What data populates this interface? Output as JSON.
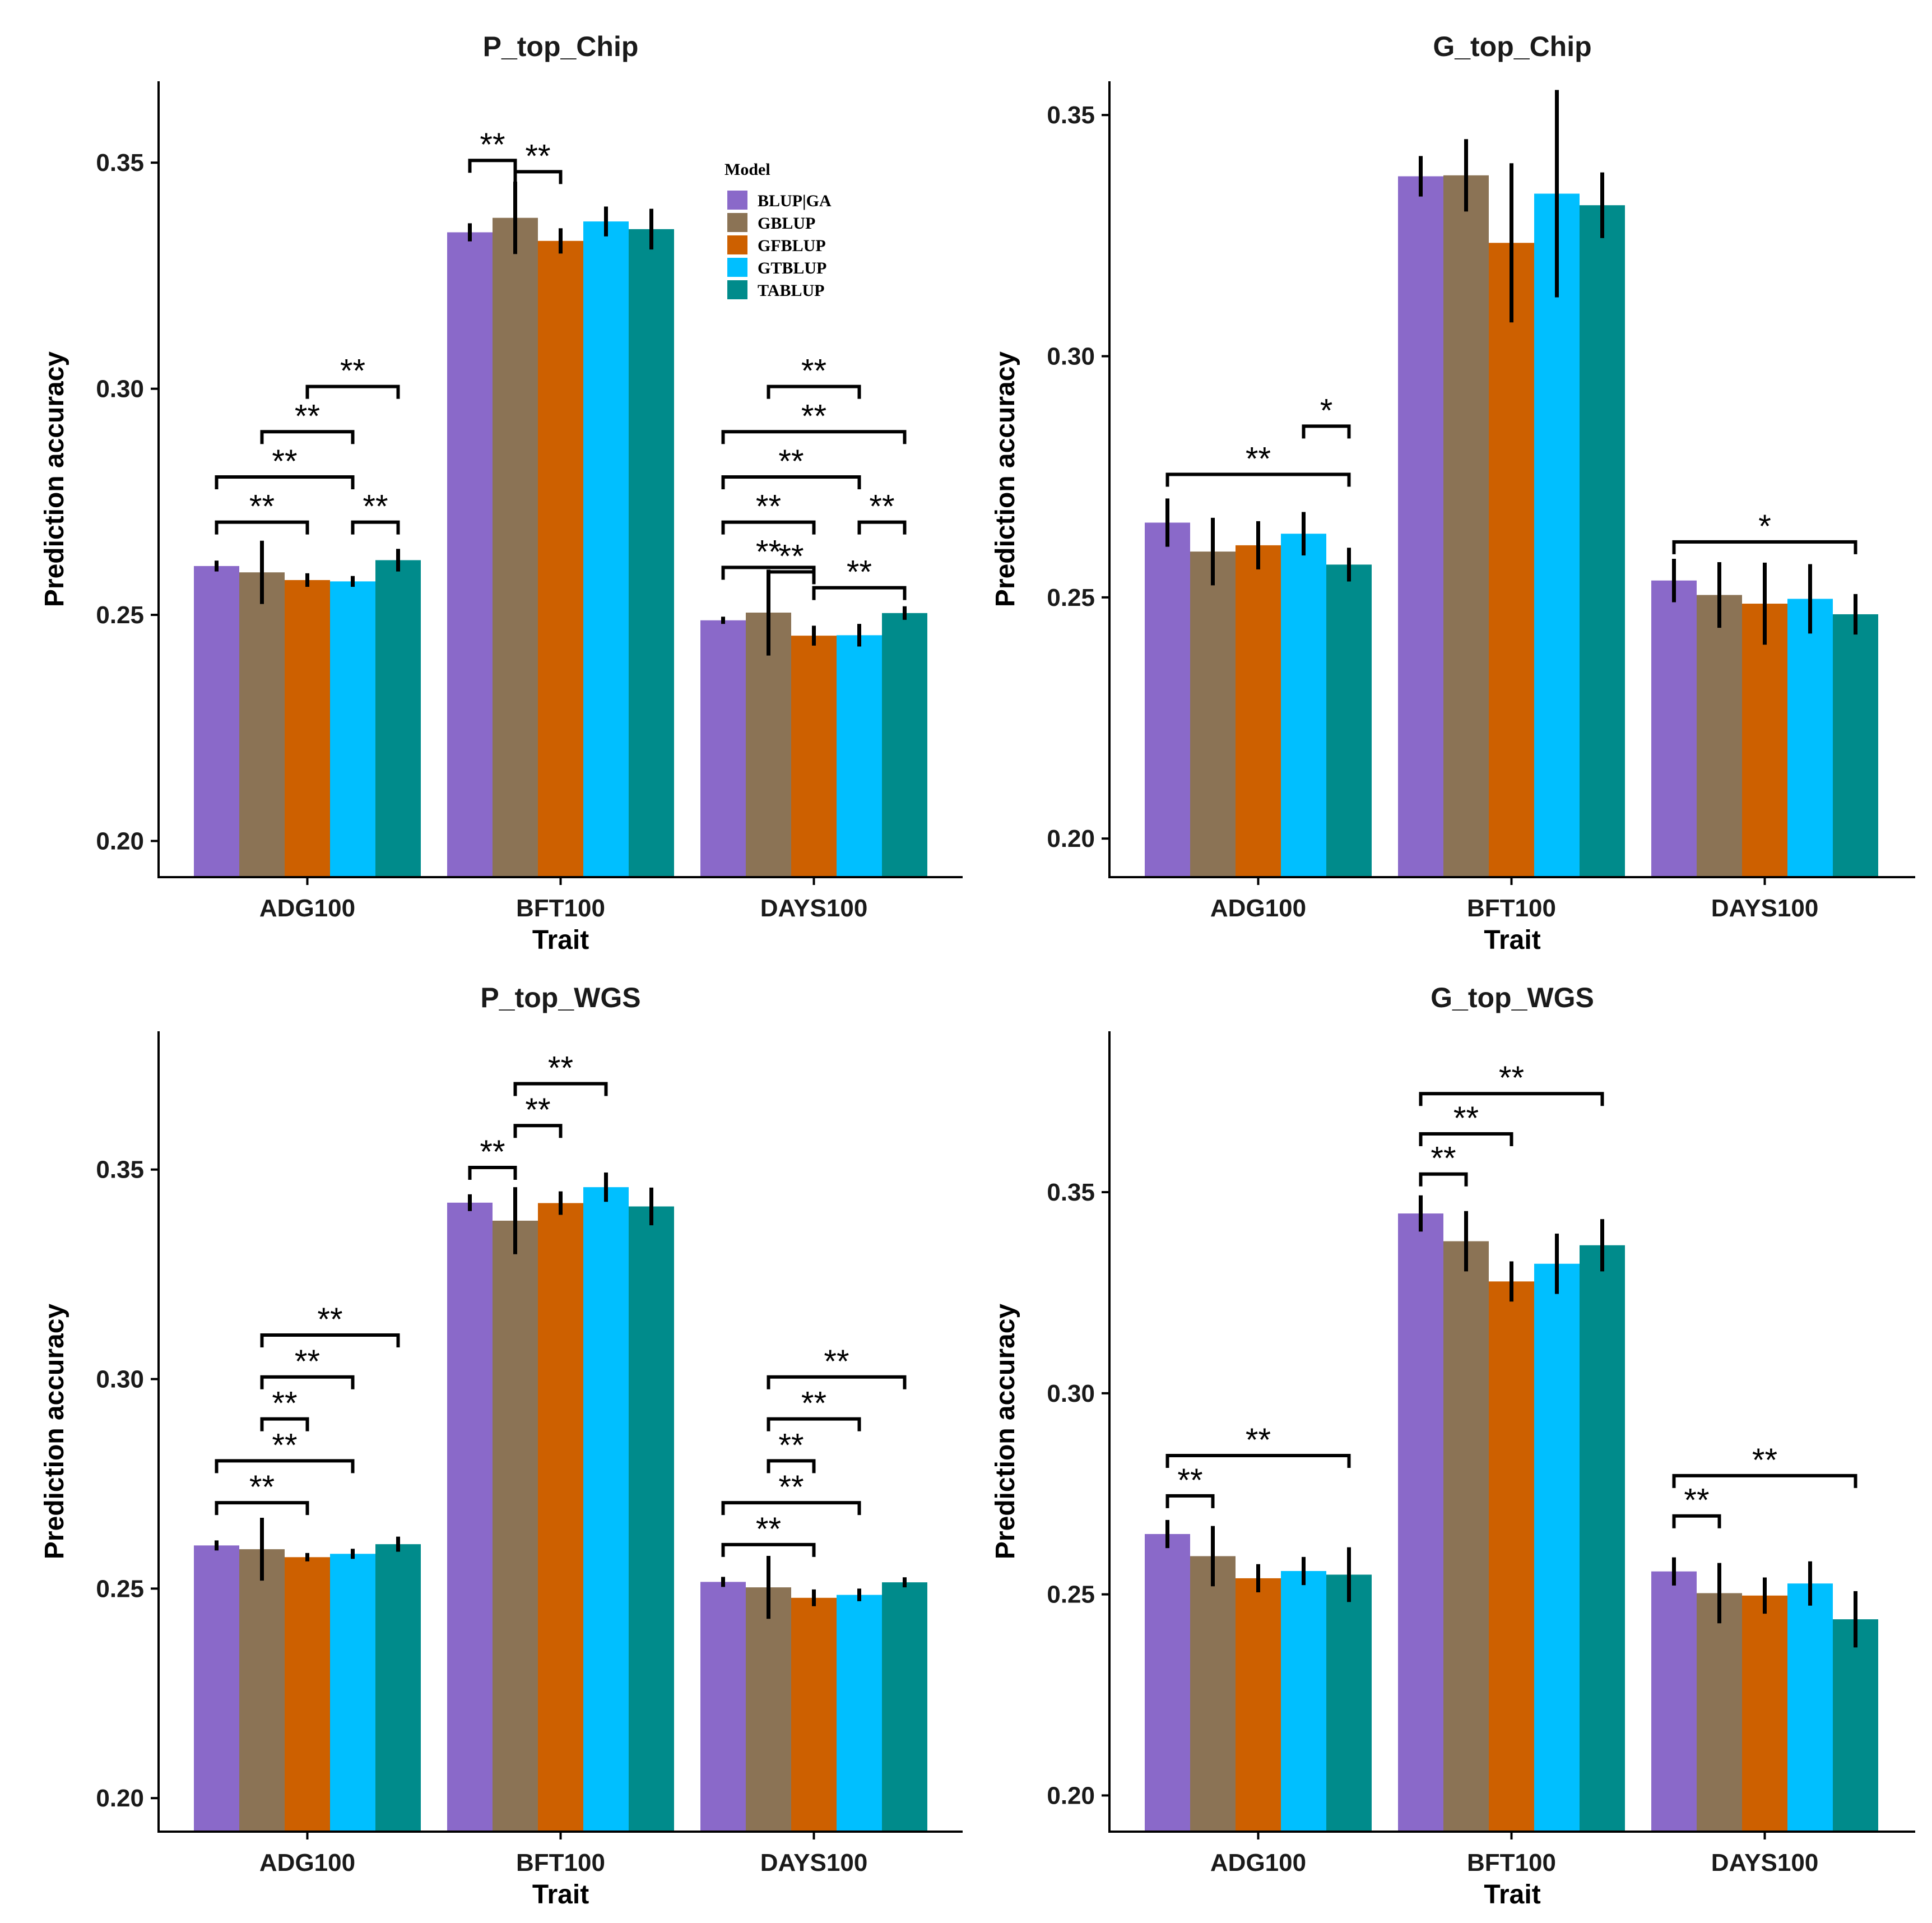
{
  "colors": {
    "BLUP|GA": "#8a69c9",
    "GBLUP": "#8b7355",
    "GFBLUP": "#cd6000",
    "GTBLUP": "#00bfff",
    "TABLUP": "#008b8b"
  },
  "legend": {
    "title": "Model",
    "entries": [
      "BLUP|GA",
      "GBLUP",
      "GFBLUP",
      "GTBLUP",
      "TABLUP"
    ]
  },
  "chart_data": [
    {
      "type": "bar",
      "title": "P_top_Chip",
      "xlabel": "Trait",
      "ylabel": "Prediction accuracy",
      "ylim": [
        0.192,
        0.368
      ],
      "yticks": [
        "0.20",
        "0.25",
        "0.30",
        "0.35"
      ],
      "categories": [
        "ADG100",
        "BFT100",
        "DAYS100"
      ],
      "series": [
        {
          "name": "BLUP|GA",
          "values": [
            0.2608,
            0.3346,
            0.2488
          ],
          "err": [
            0.0012,
            0.002,
            0.0008
          ]
        },
        {
          "name": "GBLUP",
          "values": [
            0.2594,
            0.3378,
            0.2505
          ],
          "err": [
            0.007,
            0.008,
            0.0095
          ]
        },
        {
          "name": "GFBLUP",
          "values": [
            0.2577,
            0.3327,
            0.2454
          ],
          "err": [
            0.0015,
            0.0028,
            0.0022
          ]
        },
        {
          "name": "GTBLUP",
          "values": [
            0.2574,
            0.337,
            0.2455
          ],
          "err": [
            0.0012,
            0.0033,
            0.0025
          ]
        },
        {
          "name": "TABLUP",
          "values": [
            0.2621,
            0.3353,
            0.2504
          ],
          "err": [
            0.0025,
            0.0045,
            0.0015
          ]
        }
      ],
      "significance": [
        {
          "cat": 0,
          "from": 0,
          "to": 2,
          "y": 0.2705,
          "label": "**"
        },
        {
          "cat": 0,
          "from": 3,
          "to": 4,
          "y": 0.2705,
          "label": "**"
        },
        {
          "cat": 0,
          "from": 0,
          "to": 3,
          "y": 0.2805,
          "label": "**"
        },
        {
          "cat": 0,
          "from": 1,
          "to": 3,
          "y": 0.2905,
          "label": "**"
        },
        {
          "cat": 0,
          "from": 2,
          "to": 4,
          "y": 0.3005,
          "label": "**"
        },
        {
          "cat": 1,
          "from": 0,
          "to": 1,
          "y": 0.3505,
          "label": "**"
        },
        {
          "cat": 1,
          "from": 1,
          "to": 2,
          "y": 0.348,
          "label": "**"
        },
        {
          "cat": 2,
          "from": 0,
          "to": 2,
          "y": 0.2605,
          "label": "**"
        },
        {
          "cat": 2,
          "from": 1,
          "to": 2,
          "y": 0.2595,
          "label": "**"
        },
        {
          "cat": 2,
          "from": 2,
          "to": 4,
          "y": 0.256,
          "label": "**"
        },
        {
          "cat": 2,
          "from": 0,
          "to": 2,
          "y": 0.2705,
          "label": "**"
        },
        {
          "cat": 2,
          "from": 3,
          "to": 4,
          "y": 0.2705,
          "label": "**"
        },
        {
          "cat": 2,
          "from": 0,
          "to": 3,
          "y": 0.2805,
          "label": "**"
        },
        {
          "cat": 2,
          "from": 0,
          "to": 4,
          "y": 0.2905,
          "label": "**"
        },
        {
          "cat": 2,
          "from": 1,
          "to": 3,
          "y": 0.3005,
          "label": "**"
        }
      ]
    },
    {
      "type": "bar",
      "title": "G_top_Chip",
      "xlabel": "Trait",
      "ylabel": "Prediction accuracy",
      "ylim": [
        0.192,
        0.357
      ],
      "yticks": [
        "0.20",
        "0.25",
        "0.30",
        "0.35"
      ],
      "categories": [
        "ADG100",
        "BFT100",
        "DAYS100"
      ],
      "series": [
        {
          "name": "BLUP|GA",
          "values": [
            0.2655,
            0.3373,
            0.2535
          ],
          "err": [
            0.005,
            0.0042,
            0.0045
          ]
        },
        {
          "name": "GBLUP",
          "values": [
            0.2595,
            0.3375,
            0.2505
          ],
          "err": [
            0.007,
            0.0075,
            0.0068
          ]
        },
        {
          "name": "GFBLUP",
          "values": [
            0.2608,
            0.3235,
            0.2487
          ],
          "err": [
            0.005,
            0.0165,
            0.0085
          ]
        },
        {
          "name": "GTBLUP",
          "values": [
            0.2632,
            0.3337,
            0.2497
          ],
          "err": [
            0.0045,
            0.0215,
            0.0072
          ]
        },
        {
          "name": "TABLUP",
          "values": [
            0.2568,
            0.3313,
            0.2465
          ],
          "err": [
            0.0035,
            0.0068,
            0.0042
          ]
        }
      ],
      "significance": [
        {
          "cat": 0,
          "from": 0,
          "to": 4,
          "y": 0.2755,
          "label": "**"
        },
        {
          "cat": 0,
          "from": 3,
          "to": 4,
          "y": 0.2855,
          "label": "*"
        },
        {
          "cat": 2,
          "from": 0,
          "to": 4,
          "y": 0.2615,
          "label": "*"
        }
      ]
    },
    {
      "type": "bar",
      "title": "P_top_WGS",
      "xlabel": "Trait",
      "ylabel": "Prediction accuracy",
      "ylim": [
        0.192,
        0.383
      ],
      "yticks": [
        "0.20",
        "0.25",
        "0.30",
        "0.35"
      ],
      "categories": [
        "ADG100",
        "BFT100",
        "DAYS100"
      ],
      "series": [
        {
          "name": "BLUP|GA",
          "values": [
            0.2603,
            0.3421,
            0.2516
          ],
          "err": [
            0.0012,
            0.002,
            0.0012
          ]
        },
        {
          "name": "GBLUP",
          "values": [
            0.2594,
            0.3378,
            0.2503
          ],
          "err": [
            0.0075,
            0.008,
            0.0075
          ]
        },
        {
          "name": "GFBLUP",
          "values": [
            0.2575,
            0.342,
            0.2478
          ],
          "err": [
            0.001,
            0.0028,
            0.002
          ]
        },
        {
          "name": "GTBLUP",
          "values": [
            0.2583,
            0.3458,
            0.2485
          ],
          "err": [
            0.0012,
            0.0035,
            0.0015
          ]
        },
        {
          "name": "TABLUP",
          "values": [
            0.2606,
            0.3412,
            0.2515
          ],
          "err": [
            0.0018,
            0.0045,
            0.0012
          ]
        }
      ],
      "significance": [
        {
          "cat": 0,
          "from": 0,
          "to": 2,
          "y": 0.2705,
          "label": "**"
        },
        {
          "cat": 0,
          "from": 0,
          "to": 3,
          "y": 0.2805,
          "label": "**"
        },
        {
          "cat": 0,
          "from": 1,
          "to": 2,
          "y": 0.2905,
          "label": "**"
        },
        {
          "cat": 0,
          "from": 1,
          "to": 3,
          "y": 0.3005,
          "label": "**"
        },
        {
          "cat": 0,
          "from": 1,
          "to": 4,
          "y": 0.3105,
          "label": "**"
        },
        {
          "cat": 1,
          "from": 0,
          "to": 1,
          "y": 0.3505,
          "label": "**"
        },
        {
          "cat": 1,
          "from": 1,
          "to": 2,
          "y": 0.3605,
          "label": "**"
        },
        {
          "cat": 1,
          "from": 1,
          "to": 3,
          "y": 0.3705,
          "label": "**"
        },
        {
          "cat": 2,
          "from": 0,
          "to": 2,
          "y": 0.2605,
          "label": "**"
        },
        {
          "cat": 2,
          "from": 0,
          "to": 3,
          "y": 0.2705,
          "label": "**"
        },
        {
          "cat": 2,
          "from": 1,
          "to": 2,
          "y": 0.2805,
          "label": "**"
        },
        {
          "cat": 2,
          "from": 1,
          "to": 3,
          "y": 0.2905,
          "label": "**"
        },
        {
          "cat": 2,
          "from": 1,
          "to": 4,
          "y": 0.3005,
          "label": "**"
        }
      ]
    },
    {
      "type": "bar",
      "title": "G_top_WGS",
      "xlabel": "Trait",
      "ylabel": "Prediction accuracy",
      "ylim": [
        0.191,
        0.39
      ],
      "yticks": [
        "0.20",
        "0.25",
        "0.30",
        "0.35"
      ],
      "categories": [
        "ADG100",
        "BFT100",
        "DAYS100"
      ],
      "series": [
        {
          "name": "BLUP|GA",
          "values": [
            0.265,
            0.3447,
            0.2557
          ],
          "err": [
            0.0035,
            0.0045,
            0.0035
          ]
        },
        {
          "name": "GBLUP",
          "values": [
            0.2595,
            0.3378,
            0.2503
          ],
          "err": [
            0.0075,
            0.0075,
            0.0075
          ]
        },
        {
          "name": "GFBLUP",
          "values": [
            0.254,
            0.3278,
            0.2497
          ],
          "err": [
            0.0035,
            0.005,
            0.0045
          ]
        },
        {
          "name": "GTBLUP",
          "values": [
            0.2558,
            0.3322,
            0.2527
          ],
          "err": [
            0.0035,
            0.0075,
            0.0055
          ]
        },
        {
          "name": "TABLUP",
          "values": [
            0.2549,
            0.3368,
            0.2438
          ],
          "err": [
            0.0068,
            0.0065,
            0.007
          ]
        }
      ],
      "significance": [
        {
          "cat": 0,
          "from": 0,
          "to": 1,
          "y": 0.2745,
          "label": "**"
        },
        {
          "cat": 0,
          "from": 0,
          "to": 4,
          "y": 0.2845,
          "label": "**"
        },
        {
          "cat": 1,
          "from": 0,
          "to": 1,
          "y": 0.3545,
          "label": "**"
        },
        {
          "cat": 1,
          "from": 0,
          "to": 2,
          "y": 0.3645,
          "label": "**"
        },
        {
          "cat": 1,
          "from": 0,
          "to": 4,
          "y": 0.3745,
          "label": "**"
        },
        {
          "cat": 2,
          "from": 0,
          "to": 1,
          "y": 0.2695,
          "label": "**"
        },
        {
          "cat": 2,
          "from": 0,
          "to": 4,
          "y": 0.2795,
          "label": "**"
        }
      ]
    }
  ]
}
